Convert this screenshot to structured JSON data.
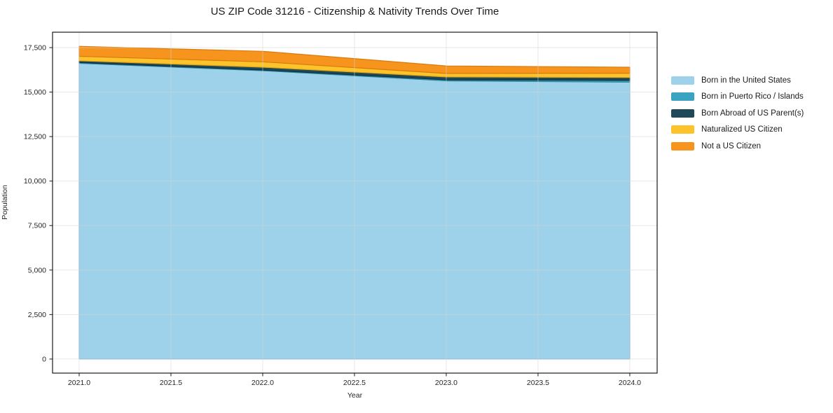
{
  "chart_data": {
    "type": "area",
    "stacked": true,
    "title": "US ZIP Code 31216 - Citizenship & Nativity Trends Over Time",
    "xlabel": "Year",
    "ylabel": "Population",
    "x": [
      2021,
      2022,
      2023,
      2024
    ],
    "series": [
      {
        "name": "Born in the United States",
        "color": "#9dd2ea",
        "edge": "#74b4d4",
        "values": [
          16620,
          16200,
          15630,
          15560
        ]
      },
      {
        "name": "Born in Puerto Rico / Islands",
        "color": "#3ba3c2",
        "edge": "#2b86a1",
        "values": [
          40,
          40,
          60,
          100
        ]
      },
      {
        "name": "Born Abroad of US Parent(s)",
        "color": "#1f4859",
        "edge": "#12303d",
        "values": [
          100,
          160,
          160,
          160
        ]
      },
      {
        "name": "Naturalized US Citizen",
        "color": "#fdc32c",
        "edge": "#e2a60f",
        "values": [
          250,
          300,
          200,
          240
        ]
      },
      {
        "name": "Not a US Citizen",
        "color": "#f7941e",
        "edge": "#d97b0c",
        "values": [
          560,
          590,
          420,
          340
        ]
      }
    ],
    "xlim": [
      2020.855,
      2024.149
    ],
    "ylim": [
      -790,
      18365
    ],
    "xticks": [
      2021.0,
      2021.5,
      2022.0,
      2022.5,
      2023.0,
      2023.5,
      2024.0
    ],
    "xtick_labels": [
      "2021.0",
      "2021.5",
      "2022.0",
      "2022.5",
      "2023.0",
      "2023.5",
      "2024.0"
    ],
    "yticks": [
      0,
      2500,
      5000,
      7500,
      10000,
      12500,
      15000,
      17500
    ],
    "ytick_labels": [
      "0",
      "2,500",
      "5,000",
      "7,500",
      "10,000",
      "12,500",
      "15,000",
      "17,500"
    ],
    "grid": true,
    "grid_color": "rgba(211,211,211,0.55)",
    "spine_color": "#1a1a1a",
    "legend_position": "right-outside"
  }
}
